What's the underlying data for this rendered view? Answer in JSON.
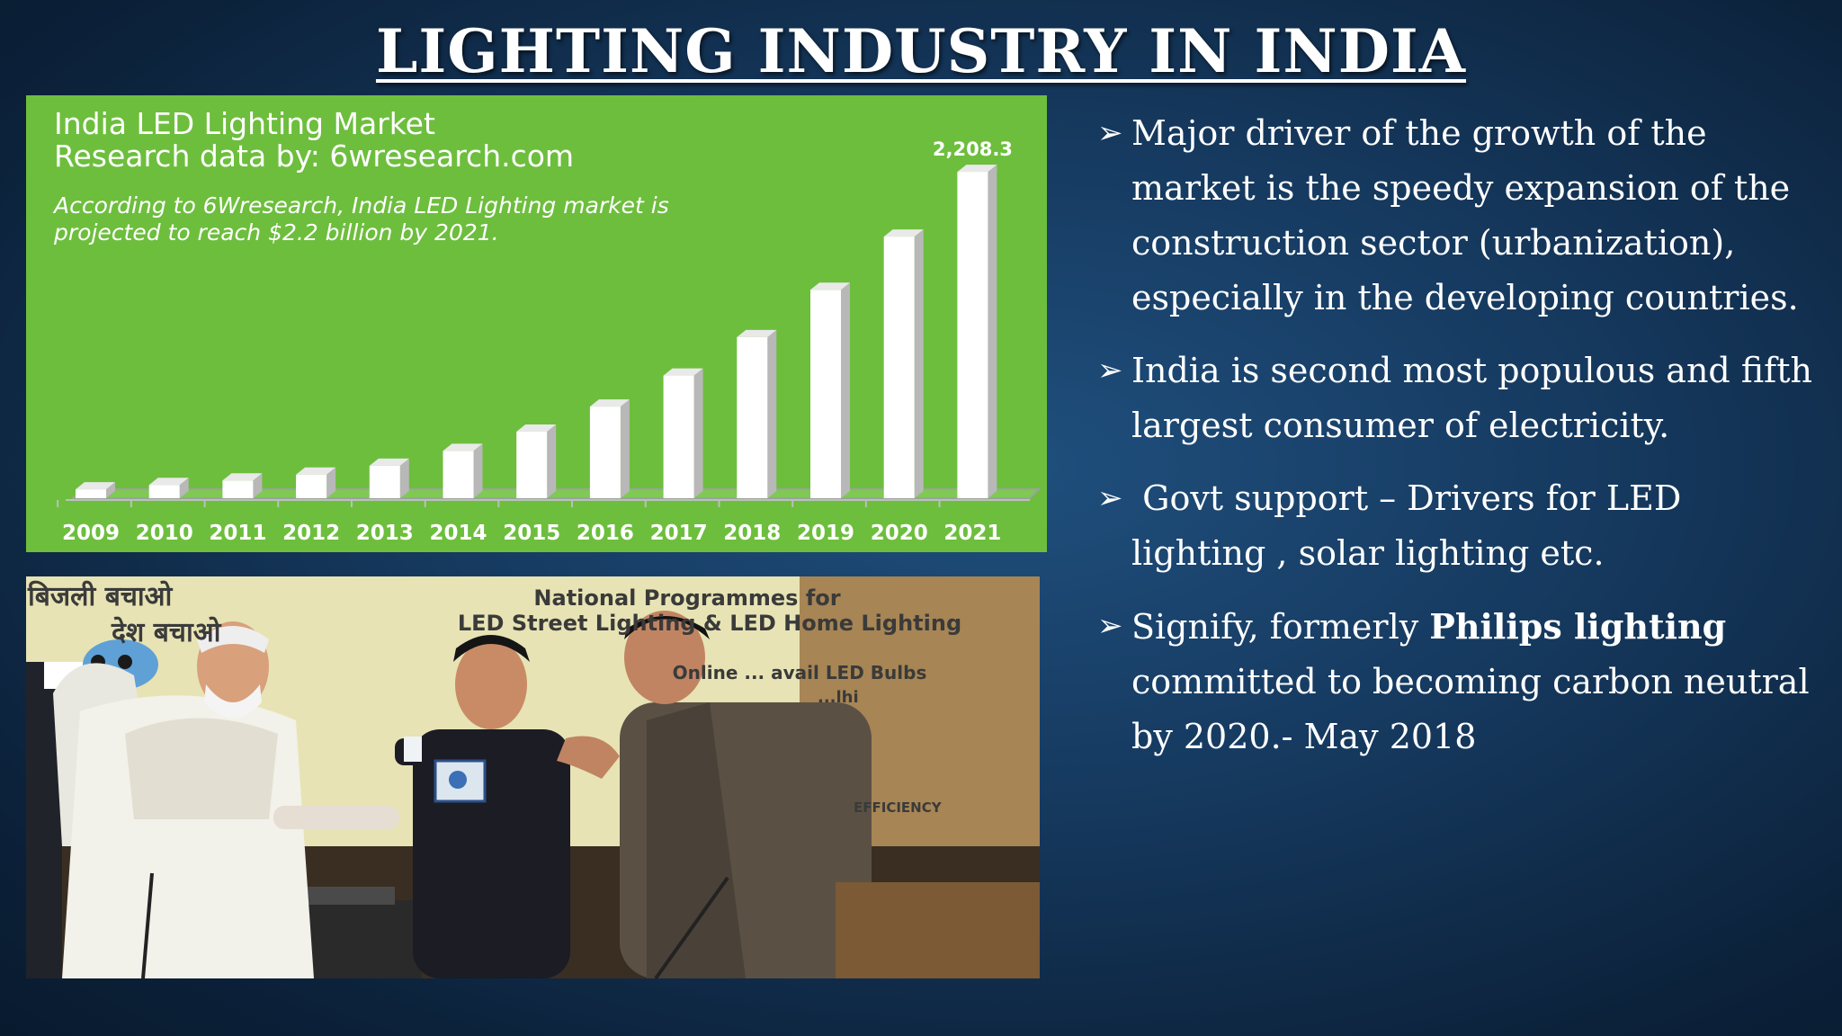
{
  "slide": {
    "title": "LIGHTING INDUSTRY IN INDIA"
  },
  "chart_panel": {
    "heading_line1": "India LED Lighting Market",
    "heading_line2": "Research data by: 6wresearch.com",
    "note": "According to 6Wresearch, India LED Lighting market is projected to reach $2.2 billion by 2021.",
    "background_color": "#6dbe3d"
  },
  "chart_data": {
    "type": "bar",
    "title": "India LED Lighting Market",
    "categories": [
      "2009",
      "2010",
      "2011",
      "2012",
      "2013",
      "2014",
      "2015",
      "2016",
      "2017",
      "2018",
      "2019",
      "2020",
      "2021"
    ],
    "values": [
      60,
      90,
      120,
      160,
      220,
      320,
      450,
      620,
      830,
      1090,
      1410,
      1770,
      2208.3
    ],
    "labeled_value": "2,208.3",
    "xlabel": "",
    "ylabel": "",
    "ylim": [
      0,
      2300
    ],
    "grid": false
  },
  "photo": {
    "banner_line1": "National Programmes for",
    "banner_line2": "LED Street Lighting & LED Home Lighting",
    "banner_line3": "Online ... avail LED Bulbs",
    "banner_line4": "...lhi",
    "banner_efficiency": "EFFICIENCY",
    "hindi_line1": "बिजली बचाओ",
    "hindi_line2": "देश बचाओ"
  },
  "bullets": {
    "marker": "➢",
    "b1": "Major driver of the growth of the market is the speedy expansion of the construction sector (urbanization), especially in the developing countries.",
    "b2": "India is second most populous and fifth largest consumer of electricity.",
    "b3": " Govt support – Drivers for LED lighting , solar lighting etc.",
    "b4_pre": "Signify, formerly ",
    "b4_bold": "Philips lighting",
    "b4_post": " committed to becoming carbon neutral by 2020.- May 2018"
  }
}
